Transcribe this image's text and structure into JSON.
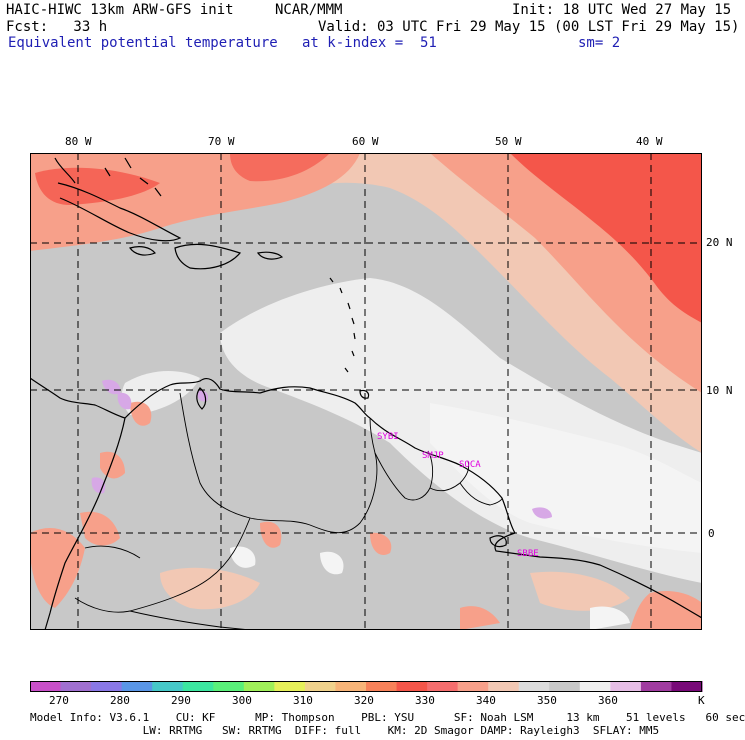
{
  "header": {
    "line1_left": "HAIC-HIWC 13km ARW-GFS init",
    "line1_mid": "NCAR/MMM",
    "line1_right": "Init: 18 UTC Wed 27 May 15",
    "line2_left": "Fcst:   33 h",
    "line2_right": "Valid: 03 UTC Fri 29 May 15 (00 LST Fri 29 May 15)",
    "line3_left": "Equivalent potential temperature",
    "line3_mid": "at k-index =  51",
    "line3_right": "sm= 2"
  },
  "map": {
    "lon_labels": [
      "80 W",
      "70 W",
      "60 W",
      "50 W",
      "40 W"
    ],
    "lat_labels": [
      "20 N",
      "10 N",
      "0"
    ],
    "stations": [
      "SYBI",
      "SMJP",
      "SOCA",
      "SBBE"
    ],
    "colors": {
      "base_gray": "#c8c8c8",
      "light": "#eeeeee",
      "tan": "#f2c8b4",
      "salmon": "#f7a08a",
      "red": "#f4564a",
      "lavender": "#d7a8e6"
    }
  },
  "colorbar": {
    "colors": [
      "#c850c8",
      "#a070d0",
      "#8a78e6",
      "#5a96e6",
      "#46c8c8",
      "#3ce6a0",
      "#5af07a",
      "#a0f05a",
      "#e6f05a",
      "#f0d28c",
      "#f7b478",
      "#f7825a",
      "#f4564a",
      "#f56e6e",
      "#f7a08a",
      "#f2c8b4",
      "#dcdcdc",
      "#c8c8c8",
      "#f0f0f0",
      "#e6bee6",
      "#a03ca0",
      "#780a78"
    ],
    "labels": [
      "270",
      "280",
      "290",
      "300",
      "310",
      "320",
      "330",
      "340",
      "350",
      "360",
      "K"
    ]
  },
  "footer": {
    "line1": "Model Info: V3.6.1    CU: KF      MP: Thompson    PBL: YSU      SF: Noah LSM     13 km    51 levels   60 sec",
    "line2": "                 LW: RRTMG   SW: RRTMG  DIFF: full    KM: 2D Smagor DAMP: Rayleigh3  SFLAY: MM5"
  }
}
